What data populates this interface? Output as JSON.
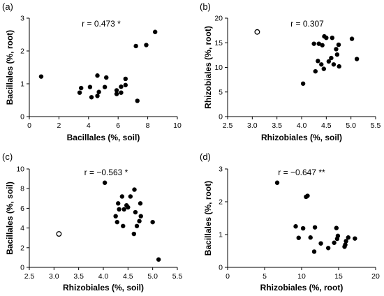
{
  "chart_data": [
    {
      "type": "scatter",
      "panel_label": "(a)",
      "annotation": "r = 0.473 *",
      "xlabel": "Bacillales (%, soil)",
      "ylabel": "Bacillales (%, root)",
      "xlim": [
        0,
        10
      ],
      "ylim": [
        0,
        3
      ],
      "xticks": [
        "0",
        "2",
        "4",
        "6",
        "8",
        "10"
      ],
      "yticks": [
        "0",
        "1",
        "2",
        "3"
      ],
      "x_tick_values": [
        0,
        2,
        4,
        6,
        8,
        10
      ],
      "y_tick_values": [
        0,
        1,
        2,
        3
      ],
      "points": [
        {
          "x": 0.8,
          "y": 1.22
        },
        {
          "x": 3.4,
          "y": 0.73
        },
        {
          "x": 3.5,
          "y": 0.87
        },
        {
          "x": 4.1,
          "y": 0.9
        },
        {
          "x": 4.2,
          "y": 0.59
        },
        {
          "x": 4.6,
          "y": 1.25
        },
        {
          "x": 4.7,
          "y": 0.75
        },
        {
          "x": 4.6,
          "y": 0.63
        },
        {
          "x": 5.1,
          "y": 0.9
        },
        {
          "x": 5.2,
          "y": 1.19
        },
        {
          "x": 5.9,
          "y": 0.8
        },
        {
          "x": 5.9,
          "y": 0.69
        },
        {
          "x": 6.2,
          "y": 0.73
        },
        {
          "x": 6.2,
          "y": 0.91
        },
        {
          "x": 6.5,
          "y": 0.96
        },
        {
          "x": 6.5,
          "y": 1.15
        },
        {
          "x": 7.2,
          "y": 2.15
        },
        {
          "x": 7.3,
          "y": 0.48
        },
        {
          "x": 7.9,
          "y": 2.18
        },
        {
          "x": 8.5,
          "y": 2.58
        }
      ]
    },
    {
      "type": "scatter",
      "panel_label": "(b)",
      "annotation": "r = 0.307",
      "xlabel": "Rhizobiales (%, soil)",
      "ylabel": "Rhizobiales (%, root)",
      "xlim": [
        2.5,
        5.5
      ],
      "ylim": [
        0,
        20
      ],
      "xticks": [
        "2.5",
        "3.0",
        "3.5",
        "4.0",
        "4.5",
        "5.0",
        "5.5"
      ],
      "yticks": [
        "0",
        "5",
        "10",
        "15",
        "20"
      ],
      "x_tick_values": [
        2.5,
        3.0,
        3.5,
        4.0,
        4.5,
        5.0,
        5.5
      ],
      "y_tick_values": [
        0,
        5,
        10,
        15,
        20
      ],
      "points": [
        {
          "x": 3.1,
          "y": 17.2,
          "open": true
        },
        {
          "x": 4.03,
          "y": 6.7
        },
        {
          "x": 4.25,
          "y": 14.8
        },
        {
          "x": 4.28,
          "y": 9.2
        },
        {
          "x": 4.33,
          "y": 11.3
        },
        {
          "x": 4.35,
          "y": 14.8
        },
        {
          "x": 4.4,
          "y": 10.6
        },
        {
          "x": 4.42,
          "y": 14.5
        },
        {
          "x": 4.45,
          "y": 9.7
        },
        {
          "x": 4.46,
          "y": 16.3
        },
        {
          "x": 4.5,
          "y": 16.0
        },
        {
          "x": 4.55,
          "y": 11.2
        },
        {
          "x": 4.6,
          "y": 11.9
        },
        {
          "x": 4.62,
          "y": 16.0
        },
        {
          "x": 4.65,
          "y": 10.6
        },
        {
          "x": 4.7,
          "y": 13.7
        },
        {
          "x": 4.72,
          "y": 12.6
        },
        {
          "x": 4.75,
          "y": 14.6
        },
        {
          "x": 4.76,
          "y": 10.2
        },
        {
          "x": 5.02,
          "y": 15.8
        },
        {
          "x": 5.12,
          "y": 11.7
        }
      ]
    },
    {
      "type": "scatter",
      "panel_label": "(c)",
      "annotation": "r = −0.563 *",
      "xlabel": "Rhizobiales (%, soil)",
      "ylabel": "Bacillales (%, soil)",
      "xlim": [
        2.5,
        5.5
      ],
      "ylim": [
        0,
        10
      ],
      "xticks": [
        "2.5",
        "3.0",
        "3.5",
        "4.0",
        "4.5",
        "5.0",
        "5.5"
      ],
      "yticks": [
        "0",
        "2",
        "4",
        "6",
        "8",
        "10"
      ],
      "x_tick_values": [
        2.5,
        3.0,
        3.5,
        4.0,
        4.5,
        5.0,
        5.5
      ],
      "y_tick_values": [
        0,
        2,
        4,
        6,
        8,
        10
      ],
      "points": [
        {
          "x": 3.1,
          "y": 3.4,
          "open": true
        },
        {
          "x": 4.03,
          "y": 8.6
        },
        {
          "x": 4.25,
          "y": 5.2
        },
        {
          "x": 4.28,
          "y": 4.6
        },
        {
          "x": 4.3,
          "y": 6.5
        },
        {
          "x": 4.32,
          "y": 5.9
        },
        {
          "x": 4.38,
          "y": 7.2
        },
        {
          "x": 4.4,
          "y": 4.2
        },
        {
          "x": 4.42,
          "y": 5.9
        },
        {
          "x": 4.47,
          "y": 6.3
        },
        {
          "x": 4.5,
          "y": 6.1
        },
        {
          "x": 4.55,
          "y": 7.2
        },
        {
          "x": 4.62,
          "y": 3.4
        },
        {
          "x": 4.63,
          "y": 7.9
        },
        {
          "x": 4.65,
          "y": 5.6
        },
        {
          "x": 4.68,
          "y": 4.2
        },
        {
          "x": 4.73,
          "y": 4.7
        },
        {
          "x": 4.75,
          "y": 6.5
        },
        {
          "x": 4.76,
          "y": 5.2
        },
        {
          "x": 5.0,
          "y": 4.6
        },
        {
          "x": 5.12,
          "y": 0.8
        }
      ]
    },
    {
      "type": "scatter",
      "panel_label": "(d)",
      "annotation": "r = −0.647 **",
      "xlabel": "Rhizobiales (%, root)",
      "ylabel": "Bacillales (%, root)",
      "xlim": [
        0,
        20
      ],
      "ylim": [
        0,
        3
      ],
      "xticks": [
        "0",
        "5",
        "10",
        "15",
        "20"
      ],
      "yticks": [
        "0",
        "1",
        "2",
        "3"
      ],
      "x_tick_values": [
        0,
        5,
        10,
        15,
        20
      ],
      "y_tick_values": [
        0,
        1,
        2,
        3
      ],
      "points": [
        {
          "x": 6.7,
          "y": 2.58
        },
        {
          "x": 9.2,
          "y": 1.25
        },
        {
          "x": 9.6,
          "y": 0.9
        },
        {
          "x": 10.2,
          "y": 1.19
        },
        {
          "x": 10.6,
          "y": 2.15
        },
        {
          "x": 10.8,
          "y": 2.18
        },
        {
          "x": 11.2,
          "y": 0.91
        },
        {
          "x": 11.7,
          "y": 0.48
        },
        {
          "x": 11.8,
          "y": 1.22
        },
        {
          "x": 12.6,
          "y": 0.73
        },
        {
          "x": 13.6,
          "y": 0.59
        },
        {
          "x": 14.4,
          "y": 0.75
        },
        {
          "x": 14.7,
          "y": 1.2
        },
        {
          "x": 14.8,
          "y": 0.87
        },
        {
          "x": 14.9,
          "y": 0.96
        },
        {
          "x": 15.8,
          "y": 0.63
        },
        {
          "x": 15.9,
          "y": 0.69
        },
        {
          "x": 16.0,
          "y": 0.8
        },
        {
          "x": 16.3,
          "y": 0.91
        },
        {
          "x": 17.2,
          "y": 0.88
        }
      ]
    }
  ]
}
